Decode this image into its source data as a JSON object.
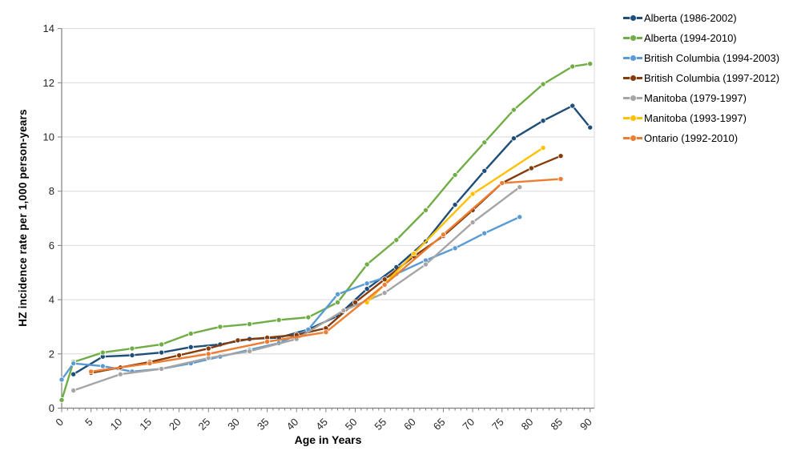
{
  "chart_data": {
    "type": "line",
    "title": "",
    "xlabel": "Age in Years",
    "ylabel": "HZ incidence rate per 1,000 person-years",
    "xlim": [
      0,
      90
    ],
    "ylim": [
      0,
      14
    ],
    "grid": "horizontal-light-gray",
    "legend_position": "right",
    "x_tick_step_major": 5,
    "x_tick_step_minor": 1,
    "y_tick_step": 2,
    "x_tick_labels": [
      "0",
      "5",
      "10",
      "15",
      "20",
      "25",
      "30",
      "35",
      "40",
      "45",
      "50",
      "55",
      "60",
      "65",
      "70",
      "75",
      "80",
      "85",
      "90"
    ],
    "y_tick_labels": [
      "0",
      "2",
      "4",
      "6",
      "8",
      "10",
      "12",
      "14"
    ],
    "series": [
      {
        "name": "Alberta (1986-2002)",
        "color": "#1F4E79",
        "points": [
          [
            2,
            1.25
          ],
          [
            7,
            1.9
          ],
          [
            12,
            1.95
          ],
          [
            17,
            2.05
          ],
          [
            22,
            2.25
          ],
          [
            27,
            2.35
          ],
          [
            32,
            2.55
          ],
          [
            37,
            2.6
          ],
          [
            42,
            2.9
          ],
          [
            47,
            3.4
          ],
          [
            52,
            4.4
          ],
          [
            57,
            5.2
          ],
          [
            62,
            6.15
          ],
          [
            67,
            7.5
          ],
          [
            72,
            8.75
          ],
          [
            77,
            9.95
          ],
          [
            82,
            10.6
          ],
          [
            87,
            11.15
          ],
          [
            90,
            10.35
          ]
        ]
      },
      {
        "name": "Alberta (1994-2010)",
        "color": "#70AD47",
        "points": [
          [
            0,
            0.3
          ],
          [
            2,
            1.7
          ],
          [
            7,
            2.05
          ],
          [
            12,
            2.2
          ],
          [
            17,
            2.35
          ],
          [
            22,
            2.75
          ],
          [
            27,
            3.0
          ],
          [
            32,
            3.1
          ],
          [
            37,
            3.25
          ],
          [
            42,
            3.35
          ],
          [
            47,
            3.9
          ],
          [
            52,
            5.3
          ],
          [
            57,
            6.2
          ],
          [
            62,
            7.3
          ],
          [
            67,
            8.6
          ],
          [
            72,
            9.8
          ],
          [
            77,
            11.0
          ],
          [
            82,
            11.95
          ],
          [
            87,
            12.6
          ],
          [
            90,
            12.7
          ]
        ]
      },
      {
        "name": "British Columbia (1994-2003)",
        "color": "#5B9BD5",
        "points": [
          [
            0,
            1.05
          ],
          [
            2,
            1.65
          ],
          [
            7,
            1.55
          ],
          [
            12,
            1.35
          ],
          [
            17,
            1.45
          ],
          [
            22,
            1.65
          ],
          [
            27,
            1.9
          ],
          [
            32,
            2.15
          ],
          [
            37,
            2.4
          ],
          [
            42,
            2.9
          ],
          [
            47,
            4.2
          ],
          [
            52,
            4.6
          ],
          [
            57,
            4.95
          ],
          [
            62,
            5.45
          ],
          [
            67,
            5.9
          ],
          [
            72,
            6.45
          ],
          [
            78,
            7.05
          ]
        ]
      },
      {
        "name": "British Columbia (1997-2012)",
        "color": "#843C0C",
        "points": [
          [
            5,
            1.3
          ],
          [
            10,
            1.5
          ],
          [
            15,
            1.7
          ],
          [
            20,
            1.95
          ],
          [
            25,
            2.2
          ],
          [
            30,
            2.5
          ],
          [
            35,
            2.6
          ],
          [
            40,
            2.7
          ],
          [
            45,
            2.95
          ],
          [
            50,
            3.9
          ],
          [
            55,
            4.75
          ],
          [
            60,
            5.6
          ],
          [
            65,
            6.35
          ],
          [
            70,
            7.3
          ],
          [
            75,
            8.3
          ],
          [
            80,
            8.85
          ],
          [
            85,
            9.3
          ]
        ]
      },
      {
        "name": "Manitoba (1979-1997)",
        "color": "#A5A5A5",
        "points": [
          [
            2,
            0.65
          ],
          [
            10,
            1.25
          ],
          [
            17,
            1.45
          ],
          [
            25,
            1.85
          ],
          [
            32,
            2.1
          ],
          [
            40,
            2.55
          ],
          [
            48,
            3.6
          ],
          [
            55,
            4.25
          ],
          [
            62,
            5.3
          ],
          [
            70,
            6.85
          ],
          [
            78,
            8.15
          ]
        ]
      },
      {
        "name": "Manitoba (1993-1997)",
        "color": "#FFC000",
        "points": [
          [
            52,
            3.9
          ],
          [
            60,
            5.7
          ],
          [
            70,
            7.9
          ],
          [
            82,
            9.6
          ]
        ]
      },
      {
        "name": "Ontario (1992-2010)",
        "color": "#ED7D31",
        "points": [
          [
            5,
            1.35
          ],
          [
            15,
            1.65
          ],
          [
            25,
            2.0
          ],
          [
            35,
            2.45
          ],
          [
            45,
            2.8
          ],
          [
            55,
            4.55
          ],
          [
            65,
            6.4
          ],
          [
            75,
            8.3
          ],
          [
            85,
            8.45
          ]
        ]
      }
    ]
  }
}
